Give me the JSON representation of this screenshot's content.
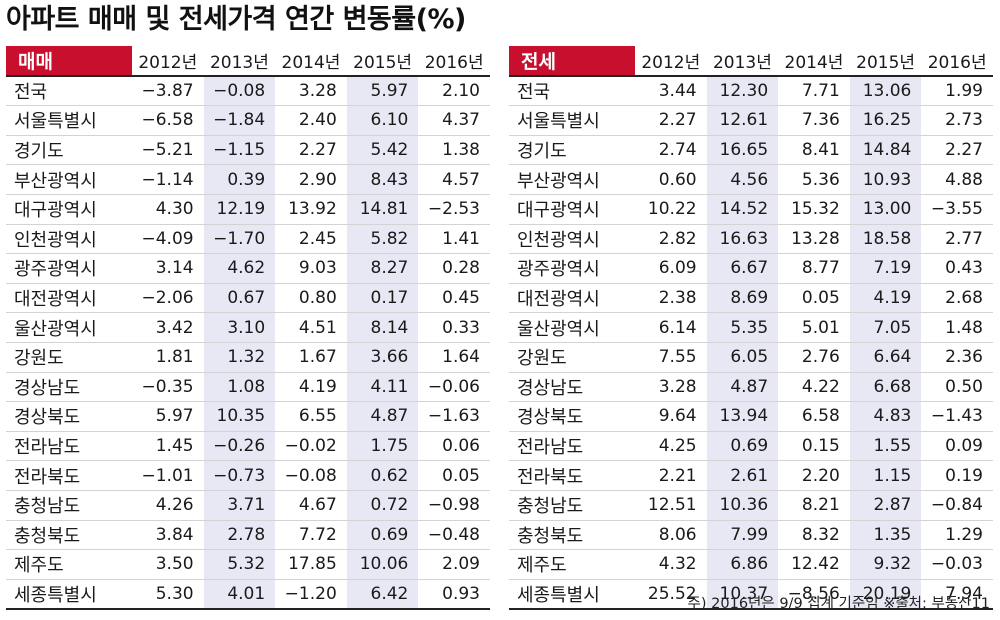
{
  "title": "아파트 매매 및 전세가격 연간 변동률(%)",
  "footnote": "주) 2016년은 9/9 집계 기준임  ※출처: 부동산11",
  "chart_data": [
    {
      "type": "table",
      "label": "매매",
      "columns": [
        "2012년",
        "2013년",
        "2014년",
        "2015년",
        "2016년"
      ],
      "rows": [
        {
          "region": "전국",
          "values": [
            "−3.87",
            "−0.08",
            "3.28",
            "5.97",
            "2.10"
          ]
        },
        {
          "region": "서울특별시",
          "values": [
            "−6.58",
            "−1.84",
            "2.40",
            "6.10",
            "4.37"
          ]
        },
        {
          "region": "경기도",
          "values": [
            "−5.21",
            "−1.15",
            "2.27",
            "5.42",
            "1.38"
          ]
        },
        {
          "region": "부산광역시",
          "values": [
            "−1.14",
            "0.39",
            "2.90",
            "8.43",
            "4.57"
          ]
        },
        {
          "region": "대구광역시",
          "values": [
            "4.30",
            "12.19",
            "13.92",
            "14.81",
            "−2.53"
          ]
        },
        {
          "region": "인천광역시",
          "values": [
            "−4.09",
            "−1.70",
            "2.45",
            "5.82",
            "1.41"
          ]
        },
        {
          "region": "광주광역시",
          "values": [
            "3.14",
            "4.62",
            "9.03",
            "8.27",
            "0.28"
          ]
        },
        {
          "region": "대전광역시",
          "values": [
            "−2.06",
            "0.67",
            "0.80",
            "0.17",
            "0.45"
          ]
        },
        {
          "region": "울산광역시",
          "values": [
            "3.42",
            "3.10",
            "4.51",
            "8.14",
            "0.33"
          ]
        },
        {
          "region": "강원도",
          "values": [
            "1.81",
            "1.32",
            "1.67",
            "3.66",
            "1.64"
          ]
        },
        {
          "region": "경상남도",
          "values": [
            "−0.35",
            "1.08",
            "4.19",
            "4.11",
            "−0.06"
          ]
        },
        {
          "region": "경상북도",
          "values": [
            "5.97",
            "10.35",
            "6.55",
            "4.87",
            "−1.63"
          ]
        },
        {
          "region": "전라남도",
          "values": [
            "1.45",
            "−0.26",
            "−0.02",
            "1.75",
            "0.06"
          ]
        },
        {
          "region": "전라북도",
          "values": [
            "−1.01",
            "−0.73",
            "−0.08",
            "0.62",
            "0.05"
          ]
        },
        {
          "region": "충청남도",
          "values": [
            "4.26",
            "3.71",
            "4.67",
            "0.72",
            "−0.98"
          ]
        },
        {
          "region": "충청북도",
          "values": [
            "3.84",
            "2.78",
            "7.72",
            "0.69",
            "−0.48"
          ]
        },
        {
          "region": "제주도",
          "values": [
            "3.50",
            "5.32",
            "17.85",
            "10.06",
            "2.09"
          ]
        },
        {
          "region": "세종특별시",
          "values": [
            "5.30",
            "4.01",
            "−1.20",
            "6.42",
            "0.93"
          ]
        }
      ]
    },
    {
      "type": "table",
      "label": "전세",
      "columns": [
        "2012년",
        "2013년",
        "2014년",
        "2015년",
        "2016년"
      ],
      "rows": [
        {
          "region": "전국",
          "values": [
            "3.44",
            "12.30",
            "7.71",
            "13.06",
            "1.99"
          ]
        },
        {
          "region": "서울특별시",
          "values": [
            "2.27",
            "12.61",
            "7.36",
            "16.25",
            "2.73"
          ]
        },
        {
          "region": "경기도",
          "values": [
            "2.74",
            "16.65",
            "8.41",
            "14.84",
            "2.27"
          ]
        },
        {
          "region": "부산광역시",
          "values": [
            "0.60",
            "4.56",
            "5.36",
            "10.93",
            "4.88"
          ]
        },
        {
          "region": "대구광역시",
          "values": [
            "10.22",
            "14.52",
            "15.32",
            "13.00",
            "−3.55"
          ]
        },
        {
          "region": "인천광역시",
          "values": [
            "2.82",
            "16.63",
            "13.28",
            "18.58",
            "2.77"
          ]
        },
        {
          "region": "광주광역시",
          "values": [
            "6.09",
            "6.67",
            "8.77",
            "7.19",
            "0.43"
          ]
        },
        {
          "region": "대전광역시",
          "values": [
            "2.38",
            "8.69",
            "0.05",
            "4.19",
            "2.68"
          ]
        },
        {
          "region": "울산광역시",
          "values": [
            "6.14",
            "5.35",
            "5.01",
            "7.05",
            "1.48"
          ]
        },
        {
          "region": "강원도",
          "values": [
            "7.55",
            "6.05",
            "2.76",
            "6.64",
            "2.36"
          ]
        },
        {
          "region": "경상남도",
          "values": [
            "3.28",
            "4.87",
            "4.22",
            "6.68",
            "0.50"
          ]
        },
        {
          "region": "경상북도",
          "values": [
            "9.64",
            "13.94",
            "6.58",
            "4.83",
            "−1.43"
          ]
        },
        {
          "region": "전라남도",
          "values": [
            "4.25",
            "0.69",
            "0.15",
            "1.55",
            "0.09"
          ]
        },
        {
          "region": "전라북도",
          "values": [
            "2.21",
            "2.61",
            "2.20",
            "1.15",
            "0.19"
          ]
        },
        {
          "region": "충청남도",
          "values": [
            "12.51",
            "10.36",
            "8.21",
            "2.87",
            "−0.84"
          ]
        },
        {
          "region": "충청북도",
          "values": [
            "8.06",
            "7.99",
            "8.32",
            "1.35",
            "1.29"
          ]
        },
        {
          "region": "제주도",
          "values": [
            "4.32",
            "6.86",
            "12.42",
            "9.32",
            "−0.03"
          ]
        },
        {
          "region": "세종특별시",
          "values": [
            "25.52",
            "10.37",
            "−8.56",
            "20.19",
            "7.94"
          ]
        }
      ]
    }
  ],
  "colors": {
    "label_bg": "#c8102e",
    "shade": "#e8e8f4",
    "rule": "#222222"
  }
}
